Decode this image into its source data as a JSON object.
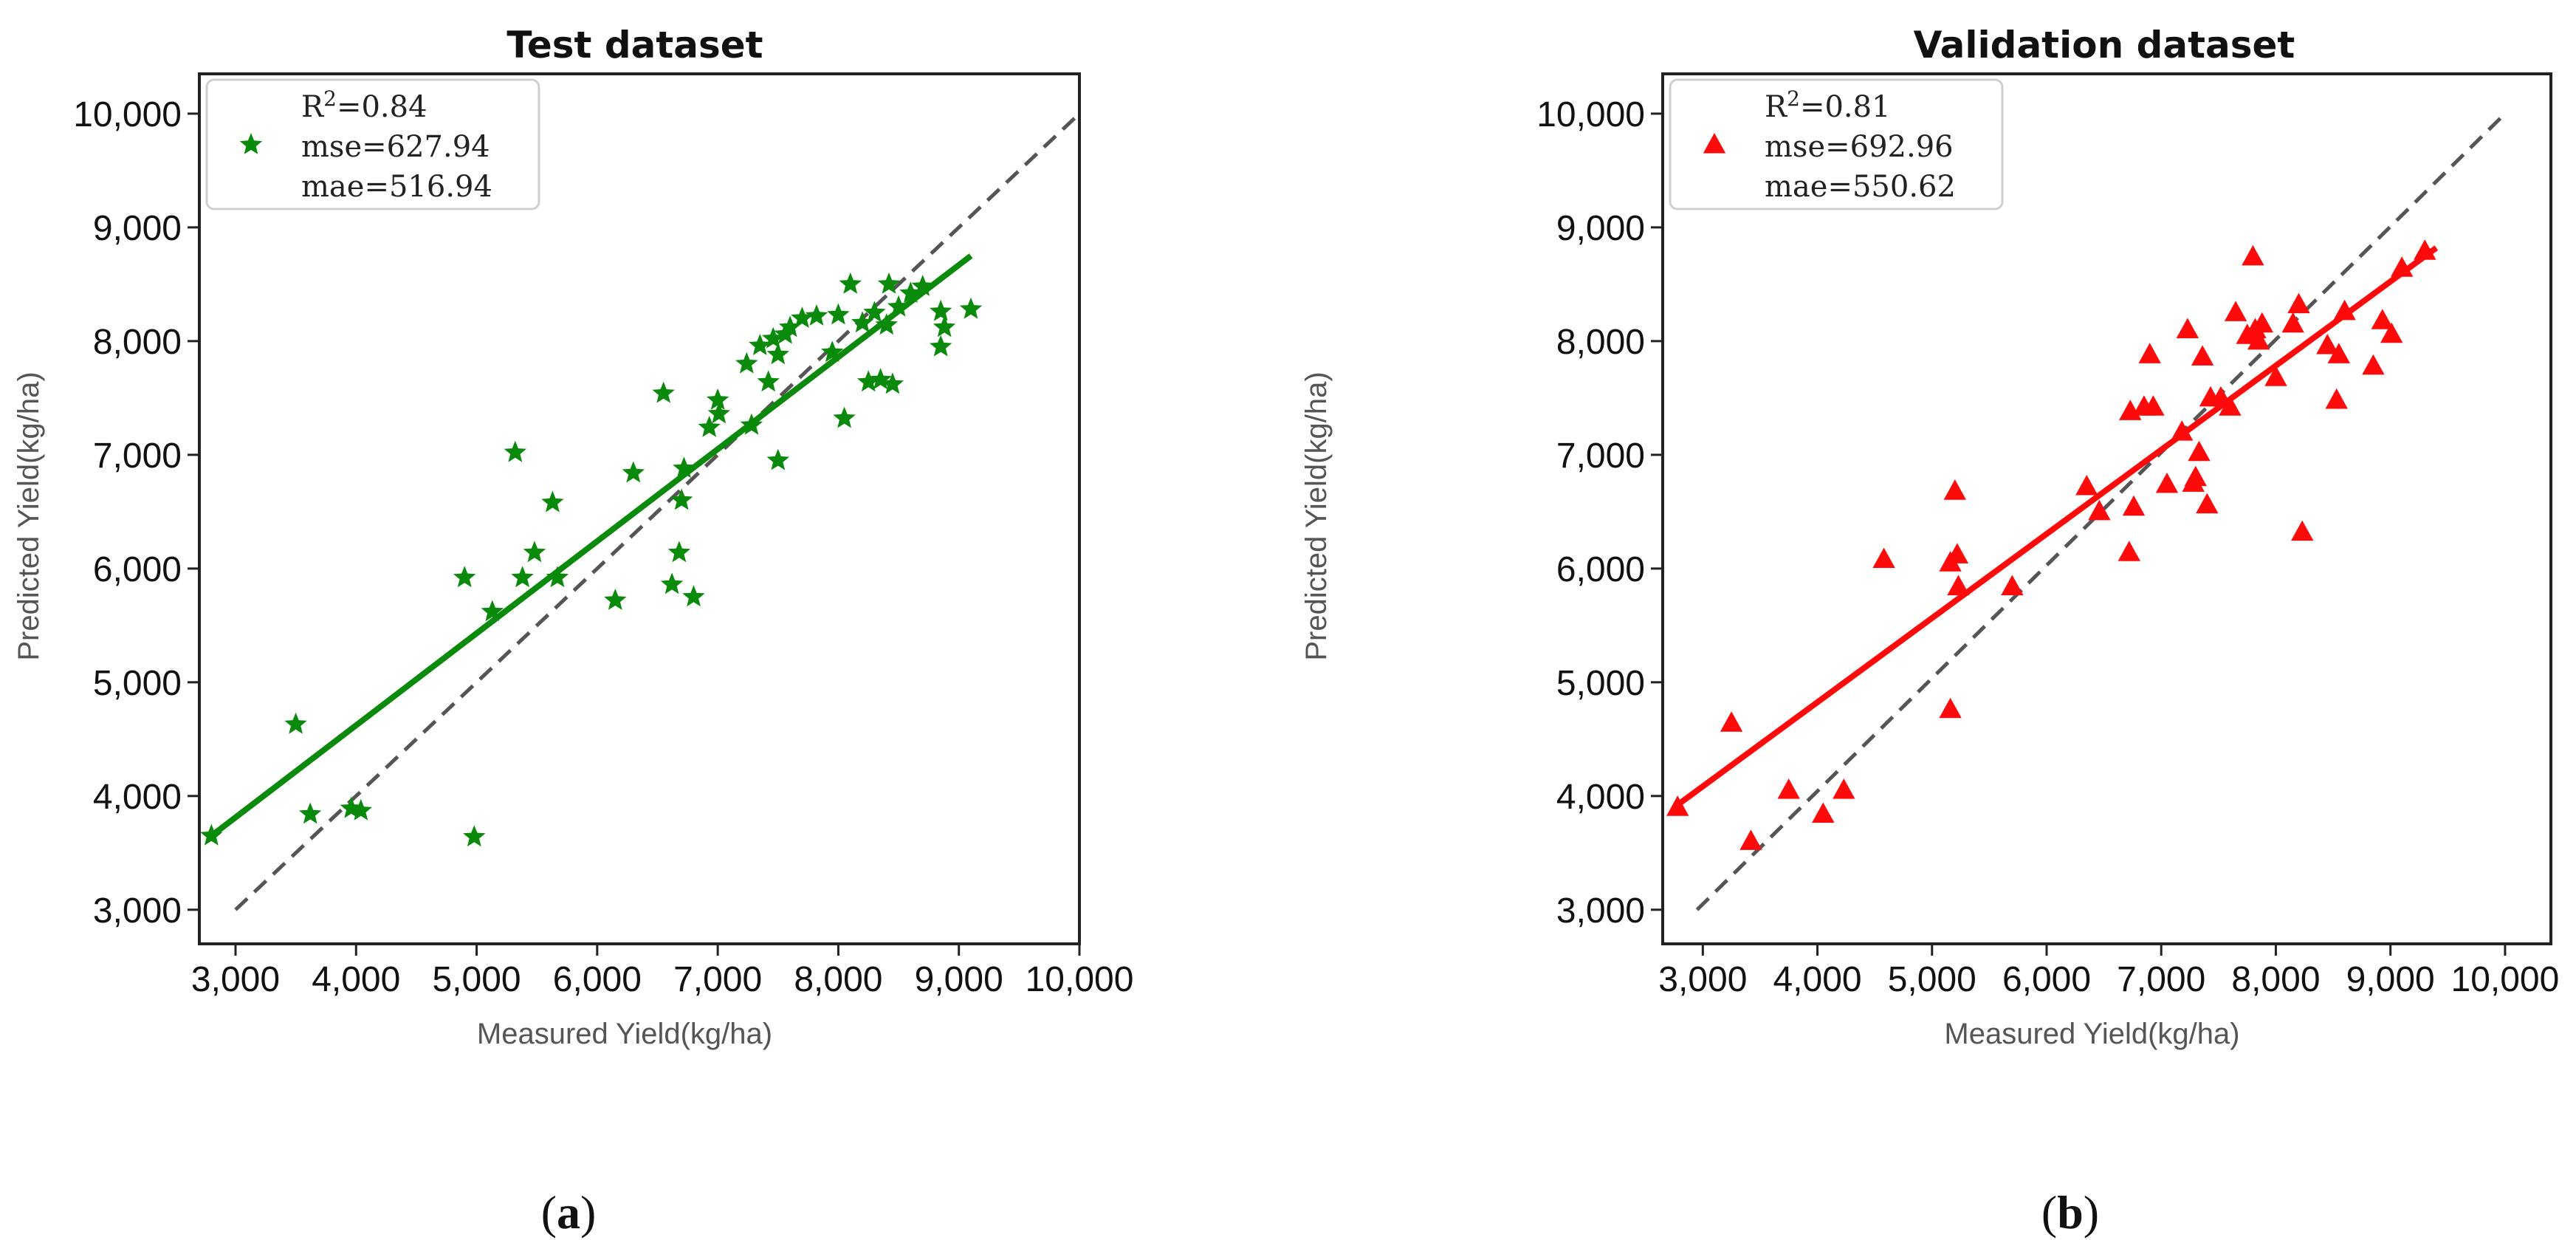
{
  "charts": [
    {
      "caption": {
        "open": "(",
        "letter": "a",
        "close": ")"
      },
      "chart_data": {
        "type": "scatter",
        "title": "Test dataset",
        "xlabel": "Measured Yield(kg/ha)",
        "ylabel": "Predicted Yield(kg/ha)",
        "xlim": [
          2700,
          10000
        ],
        "ylim": [
          2700,
          10350
        ],
        "xticks": [
          3000,
          4000,
          5000,
          6000,
          7000,
          8000,
          9000,
          10000
        ],
        "yticks": [
          3000,
          4000,
          5000,
          6000,
          7000,
          8000,
          9000,
          10000
        ],
        "xtick_labels": [
          "3,000",
          "4,000",
          "5,000",
          "6,000",
          "7,000",
          "8,000",
          "9,000",
          "10,000"
        ],
        "ytick_labels": [
          "3,000",
          "4,000",
          "5,000",
          "6,000",
          "7,000",
          "8,000",
          "9,000",
          "10,000"
        ],
        "grid": false,
        "legend_position": "top-left",
        "marker": "star",
        "color": "#0a8a0a",
        "legend": {
          "r2_prefix": "R",
          "r2_sup": "2",
          "r2_value": "=0.84",
          "mse": "mse=627.94",
          "mae": "mae=516.94"
        },
        "identity_line": {
          "from": [
            3000,
            3000
          ],
          "to": [
            10000,
            10000
          ],
          "style": "dashed",
          "color": "#555555"
        },
        "fit_line": {
          "from": [
            2800,
            3650
          ],
          "to": [
            9100,
            8750
          ]
        },
        "points": [
          [
            2800,
            3650
          ],
          [
            3500,
            4630
          ],
          [
            3620,
            3840
          ],
          [
            3960,
            3890
          ],
          [
            4040,
            3870
          ],
          [
            4980,
            3640
          ],
          [
            4900,
            5920
          ],
          [
            5130,
            5620
          ],
          [
            5320,
            7020
          ],
          [
            5380,
            5920
          ],
          [
            5480,
            6140
          ],
          [
            5630,
            6580
          ],
          [
            5670,
            5920
          ],
          [
            6150,
            5720
          ],
          [
            6300,
            6840
          ],
          [
            6550,
            7540
          ],
          [
            6620,
            5860
          ],
          [
            6680,
            6140
          ],
          [
            6700,
            6600
          ],
          [
            6720,
            6880
          ],
          [
            6800,
            5750
          ],
          [
            6930,
            7240
          ],
          [
            7000,
            7480
          ],
          [
            7010,
            7360
          ],
          [
            7240,
            7800
          ],
          [
            7280,
            7260
          ],
          [
            7350,
            7960
          ],
          [
            7420,
            7640
          ],
          [
            7460,
            8020
          ],
          [
            7500,
            6950
          ],
          [
            7500,
            7880
          ],
          [
            7560,
            8060
          ],
          [
            7600,
            8120
          ],
          [
            7700,
            8200
          ],
          [
            7820,
            8220
          ],
          [
            7950,
            7900
          ],
          [
            8000,
            8230
          ],
          [
            8050,
            7320
          ],
          [
            8100,
            8500
          ],
          [
            8200,
            8160
          ],
          [
            8250,
            7640
          ],
          [
            8300,
            8250
          ],
          [
            8350,
            7660
          ],
          [
            8400,
            8140
          ],
          [
            8420,
            8500
          ],
          [
            8450,
            7620
          ],
          [
            8500,
            8300
          ],
          [
            8600,
            8420
          ],
          [
            8700,
            8480
          ],
          [
            8850,
            7950
          ],
          [
            8850,
            8260
          ],
          [
            8880,
            8120
          ],
          [
            9100,
            8280
          ]
        ]
      }
    },
    {
      "caption": {
        "open": "(",
        "letter": "b",
        "close": ")"
      },
      "chart_data": {
        "type": "scatter",
        "title": "Validation dataset",
        "xlabel": "Measured Yield(kg/ha)",
        "ylabel": "Predicted Yield(kg/ha)",
        "xlim": [
          2650,
          10400
        ],
        "ylim": [
          2700,
          10350
        ],
        "xticks": [
          3000,
          4000,
          5000,
          6000,
          7000,
          8000,
          9000,
          10000
        ],
        "yticks": [
          3000,
          4000,
          5000,
          6000,
          7000,
          8000,
          9000,
          10000
        ],
        "xtick_labels": [
          "3,000",
          "4,000",
          "5,000",
          "6,000",
          "7,000",
          "8,000",
          "9,000",
          "10,000"
        ],
        "ytick_labels": [
          "3,000",
          "4,000",
          "5,000",
          "6,000",
          "7,000",
          "8,000",
          "9,000",
          "10,000"
        ],
        "grid": false,
        "legend_position": "top-left",
        "marker": "triangle",
        "color": "#ff0a0a",
        "legend": {
          "r2_prefix": "R",
          "r2_sup": "2",
          "r2_value": "=0.81",
          "mse": "mse=692.96",
          "mae": "mae=550.62"
        },
        "identity_line": {
          "from": [
            2950,
            3000
          ],
          "to": [
            10000,
            10000
          ],
          "style": "dashed",
          "color": "#555555"
        },
        "fit_line": {
          "from": [
            2750,
            3900
          ],
          "to": [
            9400,
            8820
          ]
        },
        "points": [
          [
            2780,
            3900
          ],
          [
            3250,
            4640
          ],
          [
            3420,
            3600
          ],
          [
            3750,
            4050
          ],
          [
            4050,
            3840
          ],
          [
            4230,
            4050
          ],
          [
            4580,
            6080
          ],
          [
            5160,
            4760
          ],
          [
            5160,
            6050
          ],
          [
            5200,
            6680
          ],
          [
            5220,
            6120
          ],
          [
            5230,
            5840
          ],
          [
            5700,
            5840
          ],
          [
            6350,
            6720
          ],
          [
            6460,
            6500
          ],
          [
            6720,
            6140
          ],
          [
            6730,
            7380
          ],
          [
            6760,
            6540
          ],
          [
            6850,
            7420
          ],
          [
            6900,
            7880
          ],
          [
            6930,
            7420
          ],
          [
            7050,
            6740
          ],
          [
            7180,
            7200
          ],
          [
            7230,
            8100
          ],
          [
            7280,
            6750
          ],
          [
            7300,
            6800
          ],
          [
            7330,
            7020
          ],
          [
            7360,
            7860
          ],
          [
            7400,
            6560
          ],
          [
            7430,
            7500
          ],
          [
            7520,
            7500
          ],
          [
            7600,
            7420
          ],
          [
            7650,
            8250
          ],
          [
            7750,
            8050
          ],
          [
            7800,
            8740
          ],
          [
            7820,
            8100
          ],
          [
            7850,
            8000
          ],
          [
            7880,
            8150
          ],
          [
            8000,
            7680
          ],
          [
            8150,
            8150
          ],
          [
            8200,
            8320
          ],
          [
            8230,
            6320
          ],
          [
            8450,
            7960
          ],
          [
            8530,
            7480
          ],
          [
            8550,
            7880
          ],
          [
            8600,
            8260
          ],
          [
            8850,
            7780
          ],
          [
            8930,
            8180
          ],
          [
            9010,
            8060
          ],
          [
            9100,
            8640
          ],
          [
            9300,
            8790
          ]
        ]
      }
    }
  ]
}
